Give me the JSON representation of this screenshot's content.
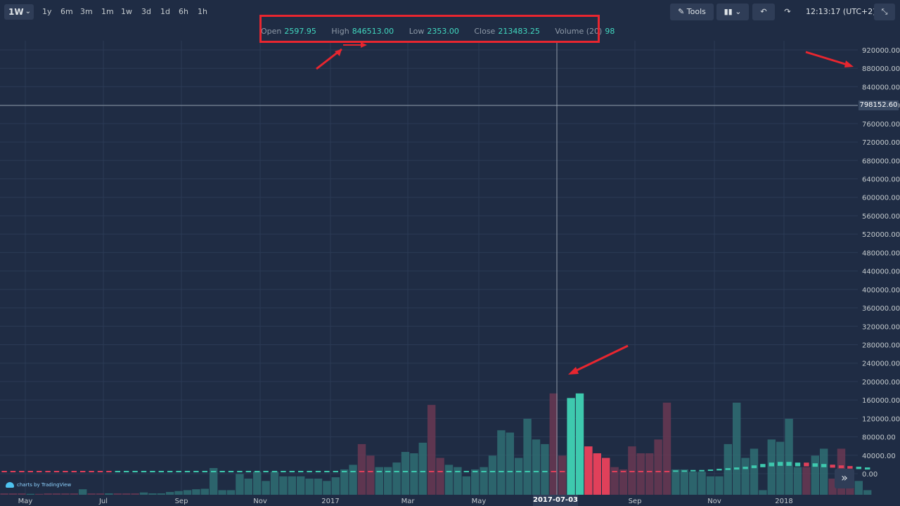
{
  "toolbar": {
    "timeframe": "1W",
    "intervals": [
      "1y",
      "6m",
      "3m",
      "1m",
      "1w",
      "3d",
      "1d",
      "6h",
      "1h"
    ],
    "tools_label": "Tools",
    "clock": "12:13:17 (UTC+2)"
  },
  "legend": {
    "open_label": "Open",
    "open_value": "2597.95",
    "high_label": "High",
    "high_value": "846513.00",
    "low_label": "Low",
    "low_value": "2353.00",
    "close_label": "Close",
    "close_value": "213483.25",
    "volume_label": "Volume (20)",
    "volume_value": "98"
  },
  "crosshair": {
    "price_label": "798152.60",
    "time_label": "2017-07-03"
  },
  "branding": {
    "logo_text": "charts by TradingView"
  },
  "colors": {
    "background": "#1f2c44",
    "up": "#3ec9ae",
    "down": "#e0405a",
    "annotation": "#e8262f"
  },
  "chart_data": {
    "type": "bar",
    "y_ticks": [
      "920000.00",
      "880000.00",
      "840000.00",
      "800000.00",
      "760000.00",
      "720000.00",
      "680000.00",
      "640000.00",
      "600000.00",
      "560000.00",
      "520000.00",
      "480000.00",
      "440000.00",
      "400000.00",
      "360000.00",
      "320000.00",
      "280000.00",
      "240000.00",
      "200000.00",
      "160000.00",
      "120000.00",
      "80000.00",
      "40000.00",
      "0.00"
    ],
    "x_ticks": [
      "May",
      "Jul",
      "Sep",
      "Nov",
      "2017",
      "Mar",
      "May",
      "Sep",
      "Nov",
      "2018"
    ],
    "ylim": [
      0,
      940000
    ],
    "highlight_index": 66,
    "series": [
      {
        "values": [
          3000,
          3000,
          3000,
          3000,
          2000,
          2000,
          3000,
          3000,
          3000,
          3000,
          12000,
          3000,
          3000,
          3000,
          3000,
          3000,
          3000,
          5000,
          3000,
          3000,
          6000,
          8000,
          10000,
          12000,
          13000,
          58000,
          10000,
          10000,
          45000,
          35000,
          50000,
          30000,
          50000,
          40000,
          40000,
          40000,
          35000,
          35000,
          30000,
          38000,
          55000,
          65000,
          110000,
          85000,
          60000,
          60000,
          70000,
          93000,
          90000,
          113000,
          195000,
          80000,
          65000,
          60000,
          40000,
          55000,
          60000,
          85000,
          140000,
          135000,
          80000,
          165000,
          120000,
          110000,
          220000,
          85000,
          210000,
          220000,
          105000,
          90000,
          80000,
          60000,
          55000,
          105000,
          90000,
          90000,
          120000,
          200000,
          55000,
          55000,
          50000,
          50000,
          40000,
          40000,
          110000,
          200000,
          80000,
          100000,
          10000,
          120000,
          115000,
          165000,
          60000,
          60000,
          85000,
          100000,
          35000,
          100000,
          40000,
          30000,
          10000
        ],
        "colors": [
          "d",
          "d",
          "d",
          "d",
          "u",
          "d",
          "d",
          "d",
          "d",
          "d",
          "u",
          "d",
          "d",
          "u",
          "d",
          "d",
          "d",
          "u",
          "u",
          "u",
          "u",
          "u",
          "u",
          "u",
          "u",
          "u",
          "u",
          "u",
          "u",
          "u",
          "u",
          "u",
          "u",
          "u",
          "u",
          "u",
          "u",
          "u",
          "u",
          "u",
          "u",
          "u",
          "d",
          "d",
          "u",
          "u",
          "u",
          "u",
          "u",
          "u",
          "d",
          "d",
          "u",
          "u",
          "u",
          "u",
          "u",
          "u",
          "u",
          "u",
          "u",
          "u",
          "u",
          "u",
          "d",
          "d",
          "U",
          "U",
          "D",
          "D",
          "D",
          "d",
          "d",
          "d",
          "d",
          "d",
          "d",
          "d",
          "u",
          "u",
          "u",
          "u",
          "u",
          "u",
          "u",
          "u",
          "u",
          "u",
          "u",
          "u",
          "u",
          "u",
          "u",
          "d",
          "u",
          "u",
          "d",
          "d",
          "d",
          "u",
          "u"
        ]
      }
    ],
    "price_series": [
      {
        "values": [
          3000,
          3000,
          3000,
          3000,
          3000,
          3000,
          3000,
          3000,
          3000,
          3000,
          3000,
          3000,
          3000,
          3000,
          3000,
          3000,
          3000,
          3000,
          3000,
          3000,
          3000,
          3000,
          3000,
          3000,
          3000,
          3000,
          3000,
          3000,
          3000,
          3000,
          3000,
          3000,
          3000,
          3000,
          3000,
          3000,
          3000,
          3000,
          3000,
          3000,
          3000,
          3000,
          3000,
          3000,
          3000,
          3000,
          3000,
          3000,
          3000,
          3000,
          3000,
          3000,
          3000,
          3000,
          3000,
          3000,
          3000,
          3000,
          3000,
          3000,
          3000,
          3000,
          3000,
          3000,
          3000,
          3000,
          3000,
          3000,
          3000,
          3000,
          3000,
          3000,
          3000,
          3000,
          3000,
          3000,
          3000,
          3000,
          4000,
          4000,
          5000,
          5000,
          6000,
          7000,
          8000,
          9000,
          10000,
          12000,
          14000,
          16000,
          17000,
          17000,
          16000,
          16000,
          15000,
          14000,
          13000,
          12000,
          11000,
          10000,
          9000
        ],
        "colors": [
          "d",
          "d",
          "d",
          "d",
          "d",
          "d",
          "d",
          "d",
          "d",
          "d",
          "d",
          "d",
          "d",
          "d",
          "u",
          "u",
          "u",
          "u",
          "u",
          "u",
          "u",
          "u",
          "u",
          "u",
          "u",
          "u",
          "u",
          "u",
          "u",
          "u",
          "u",
          "u",
          "u",
          "u",
          "u",
          "u",
          "u",
          "u",
          "u",
          "u",
          "u",
          "u",
          "d",
          "d",
          "u",
          "u",
          "u",
          "u",
          "u",
          "u",
          "d",
          "d",
          "u",
          "u",
          "u",
          "u",
          "u",
          "u",
          "u",
          "u",
          "u",
          "u",
          "u",
          "u",
          "d",
          "d",
          "u",
          "u",
          "d",
          "d",
          "d",
          "d",
          "d",
          "d",
          "d",
          "d",
          "d",
          "d",
          "u",
          "u",
          "u",
          "u",
          "u",
          "u",
          "u",
          "u",
          "u",
          "u",
          "u",
          "u",
          "u",
          "u",
          "u",
          "d",
          "u",
          "u",
          "d",
          "d",
          "d",
          "u",
          "u"
        ]
      }
    ]
  }
}
